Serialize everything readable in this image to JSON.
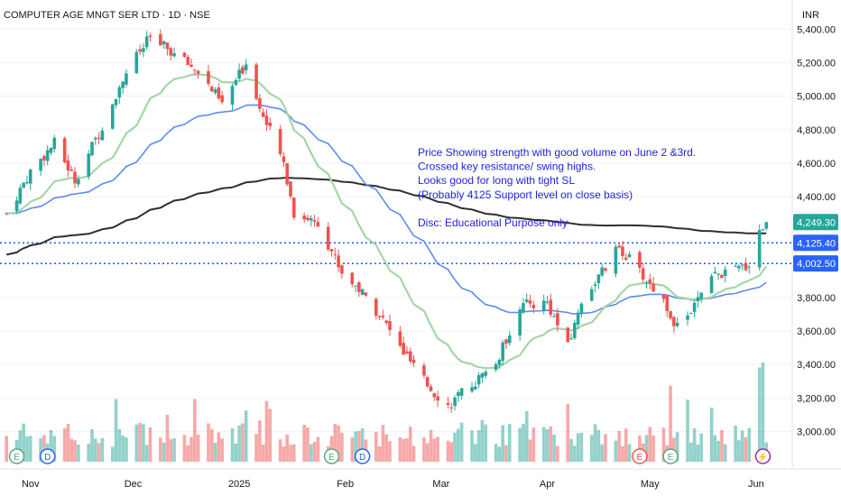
{
  "chart_data": {
    "type": "candlestick",
    "title": "COMPUTER AGE MNGT SER LTD · 1D · NSE",
    "currency": "INR",
    "y_ticks": [
      "5,400.00",
      "5,200.00",
      "5,000.00",
      "4,800.00",
      "4,600.00",
      "4,400.00",
      "3,800.00",
      "3,600.00",
      "3,400.00",
      "3,200.00",
      "3,000.00"
    ],
    "x_ticks": [
      "Nov",
      "Dec",
      "2025",
      "Feb",
      "Mar",
      "Apr",
      "May",
      "Jun"
    ],
    "ylim": [
      2820,
      5520
    ],
    "price_labels": [
      {
        "text": "4,249.30",
        "value": 4249.3,
        "bg": "#26a69a"
      },
      {
        "text": "4,125.40",
        "value": 4125.4,
        "bg": "#2962ff"
      },
      {
        "text": "4,002.50",
        "value": 4002.5,
        "bg": "#2962ff"
      }
    ],
    "horizontal_levels": [
      4125.4,
      4002.5
    ],
    "annotation_lines": [
      "Price Showing strength with good volume on June 2 &3rd.",
      "Crossed key resistance/ swing highs.",
      "Looks good for long with tight SL",
      "(Probably 4125 Support level on close basis)",
      "",
      "Disc: Educational Purpose only"
    ],
    "event_markers": [
      {
        "label": "E",
        "date": "Oct 28",
        "color": "#5aa57c"
      },
      {
        "label": "D",
        "date": "Nov 6",
        "color": "#2962ff"
      },
      {
        "label": "E",
        "date": "Jan 28",
        "color": "#5aa57c"
      },
      {
        "label": "D",
        "date": "Feb 6",
        "color": "#2962ff"
      },
      {
        "label": "E",
        "date": "Apr 28",
        "color": "#ef5350"
      },
      {
        "label": "E",
        "date": "May 7",
        "color": "#5aa57c"
      },
      {
        "label": "⚡",
        "date": "Jun 3",
        "color": "#9c27b0"
      }
    ],
    "colors": {
      "up": "#26a69a",
      "down": "#ef5350",
      "ema_fast": "#a5d6a7",
      "ema_slow": "#5b8def",
      "sma_long": "#2f2f2f",
      "level": "#2962ff",
      "note": "#1f1fe0"
    },
    "moving_averages": [
      "ema_fast",
      "ema_slow",
      "sma_long"
    ],
    "close_path": [
      [
        "2024-10-25",
        4300
      ],
      [
        "2024-11-01",
        4550
      ],
      [
        "2024-11-08",
        4720
      ],
      [
        "2024-11-14",
        4500
      ],
      [
        "2024-11-21",
        4780
      ],
      [
        "2024-11-29",
        5150
      ],
      [
        "2024-12-06",
        5350
      ],
      [
        "2024-12-13",
        5250
      ],
      [
        "2024-12-20",
        5150
      ],
      [
        "2024-12-27",
        4950
      ],
      [
        "2025-01-03",
        5200
      ],
      [
        "2025-01-08",
        4880
      ],
      [
        "2025-01-14",
        4600
      ],
      [
        "2025-01-17",
        4300
      ],
      [
        "2025-01-24",
        4250
      ],
      [
        "2025-01-31",
        3950
      ],
      [
        "2025-02-05",
        3850
      ],
      [
        "2025-02-11",
        3700
      ],
      [
        "2025-02-17",
        3500
      ],
      [
        "2025-02-24",
        3300
      ],
      [
        "2025-03-03",
        3150
      ],
      [
        "2025-03-10",
        3280
      ],
      [
        "2025-03-17",
        3400
      ],
      [
        "2025-03-24",
        3750
      ],
      [
        "2025-04-01",
        3770
      ],
      [
        "2025-04-07",
        3500
      ],
      [
        "2025-04-11",
        3780
      ],
      [
        "2025-04-17",
        3950
      ],
      [
        "2025-04-22",
        4100
      ],
      [
        "2025-04-28",
        3950
      ],
      [
        "2025-05-05",
        3780
      ],
      [
        "2025-05-09",
        3620
      ],
      [
        "2025-05-14",
        3750
      ],
      [
        "2025-05-20",
        3930
      ],
      [
        "2025-05-26",
        3960
      ],
      [
        "2025-05-30",
        4000
      ],
      [
        "2025-06-02",
        4200
      ],
      [
        "2025-06-04",
        4249.3
      ]
    ]
  }
}
